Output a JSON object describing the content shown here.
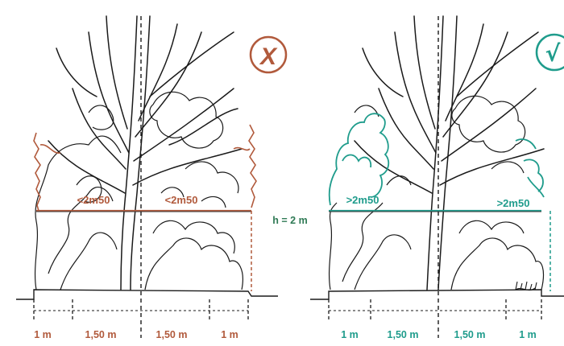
{
  "colors": {
    "bad": "#b15a3c",
    "good": "#1f9c8c",
    "middle_label": "#2f7a55",
    "ink": "#1a1a1a"
  },
  "left_panel": {
    "verdict_symbol": "X",
    "height_labels": [
      "<2m50",
      "<2m50"
    ],
    "distances": [
      "1 m",
      "1,50 m",
      "1,50 m",
      "1 m"
    ]
  },
  "middle": {
    "height_label": "h = 2 m"
  },
  "right_panel": {
    "verdict_symbol": "√",
    "height_labels": [
      ">2m50",
      ">2m50"
    ],
    "distances": [
      "1 m",
      "1,50 m",
      "1,50 m",
      "1 m"
    ]
  }
}
